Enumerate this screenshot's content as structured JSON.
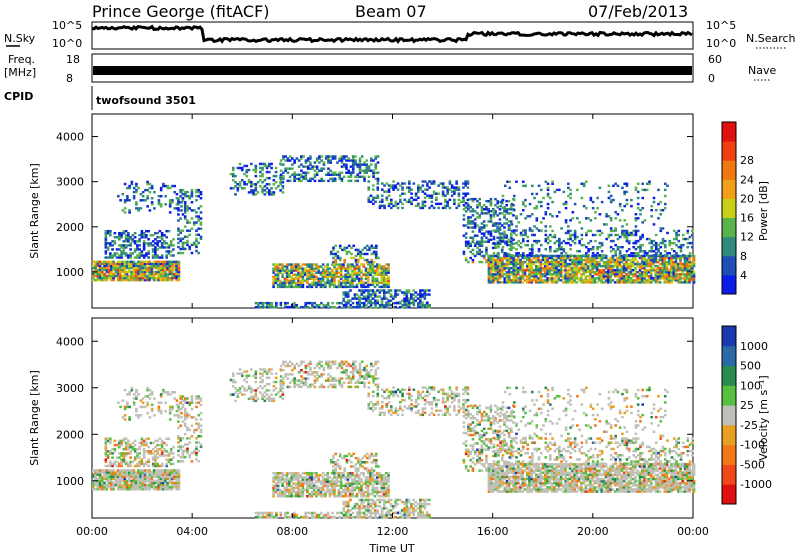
{
  "header": {
    "station": "Prince George (fitACF)",
    "beam": "Beam 07",
    "date": "07/Feb/2013"
  },
  "top_panels": {
    "nsky_label": "N.Sky",
    "nsearch_label": "N.Search",
    "nsky_ticks": [
      "10^5",
      "10^0"
    ],
    "nsearch_ticks": [
      "10^5",
      "10^0"
    ],
    "freq_label_1": "Freq.",
    "freq_label_2": "[MHz]",
    "freq_ticks": [
      "18",
      "8"
    ],
    "nave_label": "Nave",
    "nave_ticks": [
      "60",
      "0"
    ],
    "cpid_label": "CPID",
    "cpid_value": "twofsound 3501"
  },
  "chart_data": [
    {
      "type": "heatmap",
      "name": "power",
      "ylabel": "Slant Range [km]",
      "yticks": [
        1000,
        2000,
        3000,
        4000
      ],
      "ylim": [
        200,
        4500
      ],
      "xlim_hours": [
        0,
        24
      ],
      "colorbar": {
        "label": "Power [dB]",
        "ticks": [
          "4",
          "8",
          "12",
          "16",
          "20",
          "24",
          "28"
        ],
        "colors": [
          "#0a1ce8",
          "#1d4fb8",
          "#2e8a7a",
          "#58b44a",
          "#c8d018",
          "#f0a018",
          "#f07810",
          "#f04010",
          "#e01010"
        ]
      }
    },
    {
      "type": "heatmap",
      "name": "velocity",
      "ylabel": "Slant Range [km]",
      "yticks": [
        1000,
        2000,
        3000,
        4000
      ],
      "ylim": [
        200,
        4500
      ],
      "xlim_hours": [
        0,
        24
      ],
      "colorbar": {
        "label": "Velocity [m s⁻¹]",
        "ticks": [
          "1000",
          "500",
          "100",
          "25",
          "-25",
          "-100",
          "-500",
          "-1000"
        ],
        "colors": [
          "#1a3ab0",
          "#2a6aa8",
          "#2a8a50",
          "#58c040",
          "#c0c0b8",
          "#e8a020",
          "#f07818",
          "#f04818",
          "#e01010"
        ]
      }
    }
  ],
  "x_axis": {
    "ticks": [
      "00:00",
      "04:00",
      "08:00",
      "12:00",
      "16:00",
      "20:00",
      "00:00"
    ],
    "label": "Time UT"
  }
}
